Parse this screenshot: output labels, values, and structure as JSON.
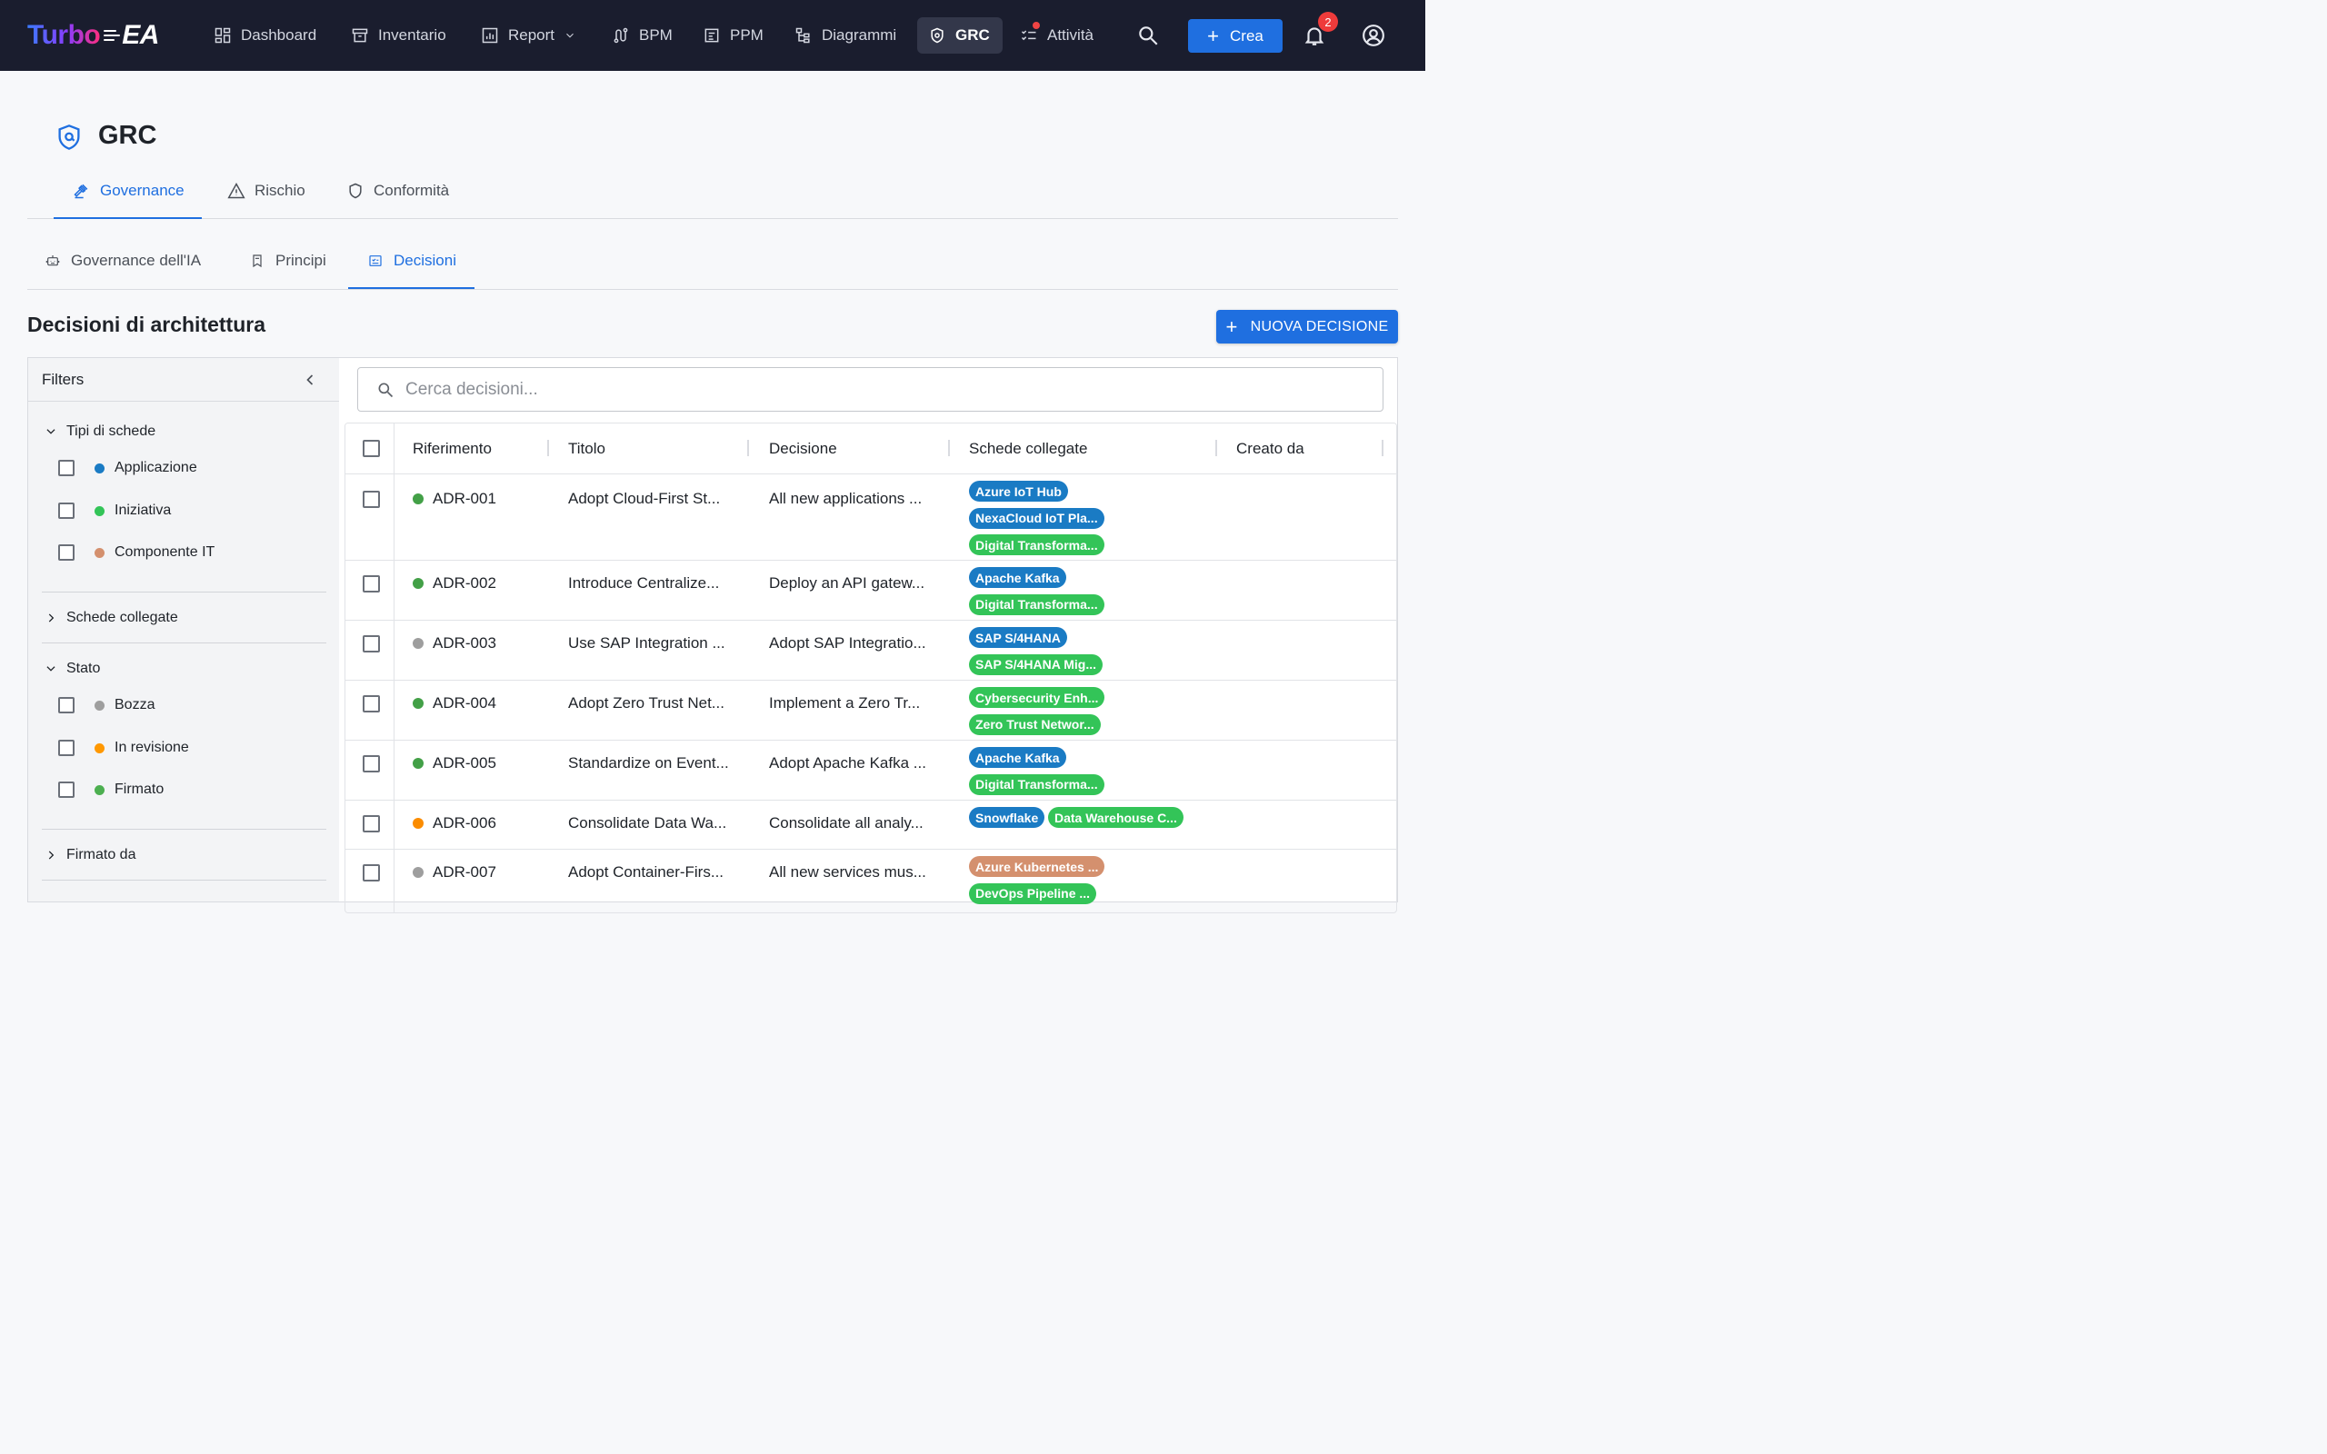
{
  "app": {
    "logo_left": "Turbo",
    "logo_right": "EA"
  },
  "nav": {
    "items": [
      {
        "label": "Dashboard"
      },
      {
        "label": "Inventario"
      },
      {
        "label": "Report"
      },
      {
        "label": "BPM"
      },
      {
        "label": "PPM"
      },
      {
        "label": "Diagrammi"
      },
      {
        "label": "GRC"
      },
      {
        "label": "Attività"
      }
    ],
    "create_label": "Crea",
    "notifications_count": "2"
  },
  "page": {
    "title": "GRC",
    "tabs": [
      {
        "label": "Governance"
      },
      {
        "label": "Rischio"
      },
      {
        "label": "Conformità"
      }
    ],
    "subtabs": [
      {
        "label": "Governance dell'IA"
      },
      {
        "label": "Principi"
      },
      {
        "label": "Decisioni"
      }
    ],
    "section_title": "Decisioni di architettura",
    "new_button": "NUOVA DECISIONE"
  },
  "filters": {
    "title": "Filters",
    "groups": [
      {
        "label": "Tipi di schede",
        "items": [
          {
            "label": "Applicazione",
            "color": "#1a7bc4"
          },
          {
            "label": "Iniziativa",
            "color": "#33c458"
          },
          {
            "label": "Componente IT",
            "color": "#d4906e"
          }
        ]
      },
      {
        "label": "Schede collegate"
      },
      {
        "label": "Stato",
        "items": [
          {
            "label": "Bozza",
            "color": "#9e9e9e"
          },
          {
            "label": "In revisione",
            "color": "#ff9800"
          },
          {
            "label": "Firmato",
            "color": "#4caf50"
          }
        ]
      },
      {
        "label": "Firmato da"
      }
    ]
  },
  "search": {
    "placeholder": "Cerca decisioni..."
  },
  "table": {
    "columns": [
      "Riferimento",
      "Titolo",
      "Decisione",
      "Schede collegate",
      "Creato da"
    ],
    "rows": [
      {
        "ref": "ADR-001",
        "status_color": "#43a047",
        "title": "Adopt Cloud-First St...",
        "decision": "All new applications ...",
        "cards": [
          "Azure IoT Hub",
          "NexaCloud IoT Pla...",
          "Digital Transforma..."
        ],
        "created_by": ""
      },
      {
        "ref": "ADR-002",
        "status_color": "#43a047",
        "title": "Introduce Centralize...",
        "decision": "Deploy an API gatew...",
        "cards": [
          "Apache Kafka",
          "Digital Transforma..."
        ],
        "created_by": ""
      },
      {
        "ref": "ADR-003",
        "status_color": "#9e9e9e",
        "title": "Use SAP Integration ...",
        "decision": "Adopt SAP Integratio...",
        "cards": [
          "SAP S/4HANA",
          "SAP S/4HANA Mig..."
        ],
        "created_by": ""
      },
      {
        "ref": "ADR-004",
        "status_color": "#43a047",
        "title": "Adopt Zero Trust Net...",
        "decision": "Implement a Zero Tr...",
        "cards": [
          "Cybersecurity Enh...",
          "Zero Trust Networ..."
        ],
        "created_by": ""
      },
      {
        "ref": "ADR-005",
        "status_color": "#43a047",
        "title": "Standardize on Event...",
        "decision": "Adopt Apache Kafka ...",
        "cards": [
          "Apache Kafka",
          "Digital Transforma..."
        ],
        "created_by": ""
      },
      {
        "ref": "ADR-006",
        "status_color": "#fb8c00",
        "title": "Consolidate Data Wa...",
        "decision": "Consolidate all analy...",
        "cards": [
          "Snowflake",
          "Data Warehouse C..."
        ],
        "created_by": ""
      },
      {
        "ref": "ADR-007",
        "status_color": "#9e9e9e",
        "title": "Adopt Container-Firs...",
        "decision": "All new services mus...",
        "cards": [
          "Azure Kubernetes ...",
          "DevOps Pipeline ..."
        ],
        "created_by": ""
      }
    ]
  },
  "colors": {
    "accent": "#1f6fe0",
    "chip_application": "#1a7bc4",
    "chip_initiative": "#33c458",
    "chip_itcomponent": "#d4906e"
  }
}
